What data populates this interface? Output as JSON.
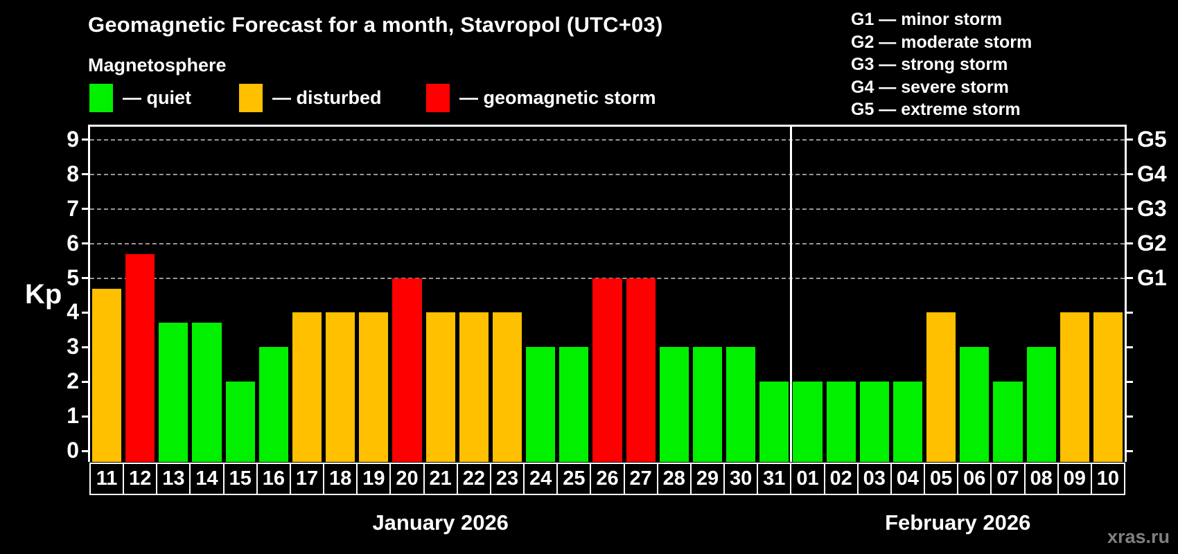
{
  "title": "Geomagnetic Forecast for a month, Stavropol (UTC+03)",
  "subtitle": "Magnetosphere",
  "magnetosphere_legend": [
    {
      "label": "— quiet",
      "status": "quiet"
    },
    {
      "label": "— disturbed",
      "status": "disturbed"
    },
    {
      "label": "— geomagnetic storm",
      "status": "storm"
    }
  ],
  "storm_scale_legend": [
    {
      "text": "G1 — minor storm"
    },
    {
      "text": "G2 — moderate storm"
    },
    {
      "text": "G3 — strong storm"
    },
    {
      "text": "G4 — severe storm"
    },
    {
      "text": "G5 — extreme storm"
    }
  ],
  "watermark": "xras.ru",
  "colors": {
    "background": "#000000",
    "quiet": "#00F000",
    "disturbed": "#FFC000",
    "storm": "#FF0000",
    "axis": "#FFFFFF",
    "grid": "#999999",
    "watermark": "#808080"
  },
  "chart_data": {
    "type": "bar",
    "ylabel": "Kp",
    "ylim": [
      -0.32,
      9.38
    ],
    "y_ticks": [
      0,
      1,
      2,
      3,
      4,
      5,
      6,
      7,
      8,
      9
    ],
    "gridlines_at": [
      5,
      6,
      7,
      8,
      9
    ],
    "grid": "horizontal dashed at Kp 5–9 only",
    "legend_position": "top-left",
    "right_axis_labels": [
      {
        "value": 5,
        "label": "G1"
      },
      {
        "value": 6,
        "label": "G2"
      },
      {
        "value": 7,
        "label": "G3"
      },
      {
        "value": 8,
        "label": "G4"
      },
      {
        "value": 9,
        "label": "G5"
      }
    ],
    "months": [
      {
        "label": "January 2026",
        "count": 21
      },
      {
        "label": "February 2026",
        "count": 10
      }
    ],
    "categories": [
      "11",
      "12",
      "13",
      "14",
      "15",
      "16",
      "17",
      "18",
      "19",
      "20",
      "21",
      "22",
      "23",
      "24",
      "25",
      "26",
      "27",
      "28",
      "29",
      "30",
      "31",
      "01",
      "02",
      "03",
      "04",
      "05",
      "06",
      "07",
      "08",
      "09",
      "10"
    ],
    "values": [
      4.7,
      5.7,
      3.7,
      3.7,
      2,
      3,
      4,
      4,
      4,
      5,
      4,
      4,
      4,
      3,
      3,
      5,
      5,
      3,
      3,
      3,
      2,
      2,
      2,
      2,
      2,
      4,
      3,
      2,
      3,
      4,
      4
    ],
    "statuses": [
      "disturbed",
      "storm",
      "quiet",
      "quiet",
      "quiet",
      "quiet",
      "disturbed",
      "disturbed",
      "disturbed",
      "storm",
      "disturbed",
      "disturbed",
      "disturbed",
      "quiet",
      "quiet",
      "storm",
      "storm",
      "quiet",
      "quiet",
      "quiet",
      "quiet",
      "quiet",
      "quiet",
      "quiet",
      "quiet",
      "disturbed",
      "quiet",
      "quiet",
      "quiet",
      "disturbed",
      "disturbed"
    ]
  }
}
